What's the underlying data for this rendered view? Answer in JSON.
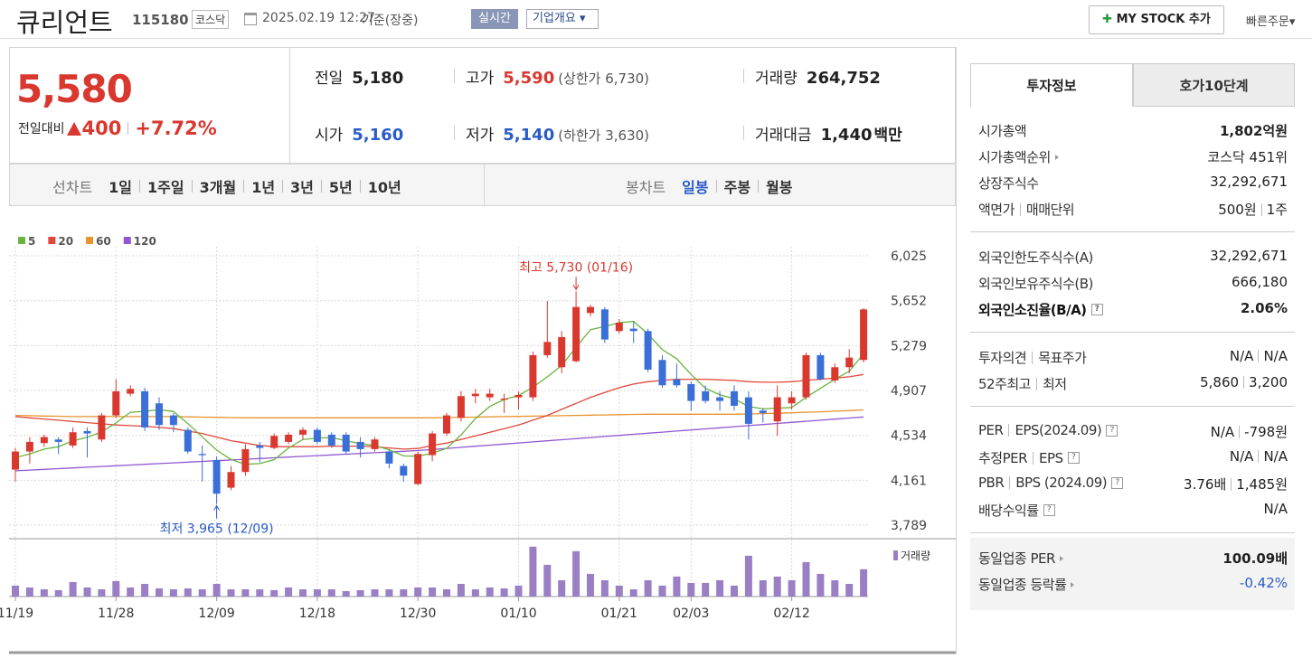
{
  "header": {
    "name": "큐리언트",
    "code": "115180",
    "market": "코스닥",
    "datetime": "2025.02.19 12:27",
    "basis": "기준(장중)",
    "realtime": "실시간",
    "company_info": "기업개요",
    "my_stock": "MY STOCK 추가",
    "quick_order": "빠른주문"
  },
  "quote": {
    "price": "5,580",
    "change_label": "전일대비",
    "change": "400",
    "change_pct": "+7.72%"
  },
  "stats": [
    {
      "label": "전일",
      "value": "5,180",
      "color": "#222222"
    },
    {
      "label": "고가",
      "value": "5,590",
      "note": "(상한가 6,730)",
      "color": "#d9382f"
    },
    {
      "label": "거래량",
      "value": "264,752",
      "color": "#222222"
    },
    {
      "label": "시가",
      "value": "5,160",
      "color": "#2a5bc8"
    },
    {
      "label": "저가",
      "value": "5,140",
      "note": "(하한가 3,630)",
      "color": "#2a5bc8"
    },
    {
      "label": "거래대금",
      "value": "1,440",
      "unit": "백만",
      "color": "#222222"
    }
  ],
  "periods": {
    "label": "선차트",
    "items": [
      "1일",
      "1주일",
      "3개월",
      "1년",
      "3년",
      "5년",
      "10년"
    ]
  },
  "candle_periods": {
    "label": "봉차트",
    "items": [
      "일봉",
      "주봉",
      "월봉"
    ],
    "active": 0
  },
  "chart_data": {
    "type": "candlestick",
    "categories": [
      "11/19",
      null,
      null,
      null,
      null,
      null,
      null,
      "11/28",
      null,
      null,
      null,
      null,
      null,
      null,
      "12/09",
      null,
      null,
      null,
      null,
      null,
      null,
      "12/18",
      null,
      null,
      null,
      null,
      null,
      null,
      "12/30",
      null,
      null,
      null,
      null,
      null,
      null,
      "01/10",
      null,
      null,
      null,
      null,
      null,
      null,
      "01/21",
      null,
      null,
      null,
      null,
      "02/03",
      null,
      null,
      null,
      null,
      null,
      null,
      "02/12",
      null,
      null,
      null,
      null,
      null
    ],
    "open": [
      4250,
      4400,
      4470,
      4500,
      4450,
      4570,
      4500,
      4700,
      4880,
      4900,
      4800,
      4700,
      4580,
      4380,
      4330,
      4100,
      4230,
      4450,
      4430,
      4480,
      4540,
      4580,
      4540,
      4540,
      4480,
      4420,
      4400,
      4280,
      4130,
      4370,
      4550,
      4680,
      4860,
      4850,
      4830,
      4850,
      4850,
      5200,
      5100,
      5150,
      5550,
      5580,
      5400,
      5420,
      5400,
      5160,
      5000,
      4960,
      4900,
      4850,
      4900,
      4850,
      4740,
      4650,
      4800,
      4850,
      5200,
      4990,
      5100,
      5160
    ],
    "high": [
      4430,
      4520,
      4540,
      4520,
      4600,
      4600,
      4720,
      5000,
      4950,
      4930,
      4850,
      4720,
      4600,
      4450,
      4360,
      4280,
      4460,
      4480,
      4550,
      4560,
      4600,
      4600,
      4560,
      4560,
      4520,
      4520,
      4420,
      4300,
      4400,
      4570,
      4720,
      4900,
      4920,
      4920,
      4880,
      4900,
      5230,
      5650,
      5400,
      5730,
      5620,
      5600,
      5500,
      5480,
      5420,
      5200,
      5130,
      4980,
      4950,
      4900,
      4950,
      4900,
      4760,
      4950,
      4900,
      5220,
      5220,
      5130,
      5250,
      5590
    ],
    "low": [
      4150,
      4300,
      4440,
      4380,
      4430,
      4350,
      4480,
      4680,
      4860,
      4570,
      4580,
      4560,
      4380,
      4150,
      3965,
      4080,
      4200,
      4310,
      4420,
      4460,
      4500,
      4460,
      4430,
      4380,
      4350,
      4400,
      4260,
      4150,
      4120,
      4320,
      4530,
      4650,
      4800,
      4820,
      4720,
      4750,
      4820,
      5180,
      5050,
      5140,
      5520,
      5300,
      5380,
      5300,
      5060,
      4930,
      4930,
      4740,
      4800,
      4740,
      4740,
      4500,
      4640,
      4530,
      4750,
      4830,
      4990,
      4970,
      5050,
      5140
    ],
    "close": [
      4400,
      4480,
      4520,
      4480,
      4560,
      4550,
      4700,
      4900,
      4920,
      4600,
      4620,
      4620,
      4400,
      4370,
      4050,
      4230,
      4420,
      4430,
      4530,
      4540,
      4580,
      4480,
      4450,
      4400,
      4420,
      4500,
      4300,
      4200,
      4380,
      4550,
      4700,
      4860,
      4880,
      4880,
      4840,
      4870,
      5200,
      5310,
      5350,
      5600,
      5600,
      5330,
      5470,
      5400,
      5080,
      4950,
      4950,
      4820,
      4820,
      4820,
      4780,
      4630,
      4720,
      4850,
      4850,
      5200,
      5000,
      5100,
      5180,
      5580
    ],
    "up_color": "#d9382f",
    "down_color": "#3a6fd8",
    "ylim": [
      3789,
      6025
    ],
    "yticks": [
      {
        "value": 6025,
        "label": "6,025"
      },
      {
        "value": 5652,
        "label": "5,652"
      },
      {
        "value": 5279,
        "label": "5,279"
      },
      {
        "value": 4907,
        "label": "4,907"
      },
      {
        "value": 4534,
        "label": "4,534"
      },
      {
        "value": 4161,
        "label": "4,161"
      },
      {
        "value": 3789,
        "label": "3,789"
      }
    ],
    "grid": true,
    "moving_averages": [
      {
        "name": "5",
        "color": "#6ab43e",
        "values": [
          4350,
          4380,
          4420,
          4440,
          4488,
          4518,
          4562,
          4638,
          4726,
          4734,
          4748,
          4732,
          4632,
          4522,
          4412,
          4334,
          4294,
          4300,
          4332,
          4430,
          4500,
          4512,
          4516,
          4490,
          4466,
          4450,
          4414,
          4364,
          4360,
          4386,
          4426,
          4538,
          4674,
          4774,
          4832,
          4866,
          4934,
          5020,
          5114,
          5266,
          5412,
          5438,
          5470,
          5480,
          5376,
          5246,
          5170,
          5040,
          4924,
          4872,
          4838,
          4774,
          4754,
          4760,
          4766,
          4850,
          4924,
          5000,
          5066,
          5212
        ]
      },
      {
        "name": "20",
        "color": "#e0483a",
        "values": [
          4690,
          4680,
          4670,
          4660,
          4650,
          4640,
          4630,
          4620,
          4615,
          4610,
          4600,
          4590,
          4570,
          4550,
          4520,
          4490,
          4470,
          4450,
          4440,
          4440,
          4440,
          4440,
          4445,
          4445,
          4445,
          4440,
          4430,
          4420,
          4425,
          4450,
          4470,
          4500,
          4530,
          4560,
          4590,
          4620,
          4660,
          4700,
          4750,
          4800,
          4850,
          4890,
          4930,
          4960,
          4980,
          4990,
          5000,
          5000,
          5000,
          4995,
          4990,
          4980,
          4975,
          4975,
          4980,
          4990,
          5000,
          5010,
          5020,
          5040
        ]
      },
      {
        "name": "60",
        "color": "#e8922e",
        "values": [
          4700,
          4698,
          4695,
          4693,
          4690,
          4690,
          4690,
          4690,
          4690,
          4690,
          4690,
          4690,
          4688,
          4686,
          4684,
          4682,
          4680,
          4680,
          4680,
          4680,
          4680,
          4680,
          4680,
          4680,
          4680,
          4680,
          4680,
          4680,
          4680,
          4680,
          4682,
          4684,
          4686,
          4688,
          4690,
          4692,
          4694,
          4696,
          4698,
          4700,
          4702,
          4704,
          4706,
          4708,
          4710,
          4710,
          4710,
          4710,
          4710,
          4710,
          4710,
          4712,
          4715,
          4718,
          4722,
          4726,
          4730,
          4735,
          4740,
          4746
        ]
      },
      {
        "name": "120",
        "color": "#9357d1",
        "values": [
          4240,
          4246,
          4252,
          4258,
          4264,
          4270,
          4276,
          4282,
          4288,
          4294,
          4300,
          4306,
          4312,
          4318,
          4324,
          4330,
          4336,
          4342,
          4348,
          4354,
          4360,
          4366,
          4372,
          4378,
          4384,
          4390,
          4396,
          4402,
          4408,
          4417,
          4426,
          4435,
          4444,
          4453,
          4462,
          4471,
          4480,
          4489,
          4498,
          4507,
          4516,
          4525,
          4534,
          4543,
          4552,
          4561,
          4570,
          4579,
          4588,
          4597,
          4606,
          4615,
          4624,
          4633,
          4642,
          4651,
          4660,
          4669,
          4678,
          4687
        ]
      }
    ],
    "volume": {
      "name": "거래량",
      "color": "#9a7fc5",
      "ylim": [
        0,
        500000
      ],
      "values": [
        106000,
        88000,
        70000,
        62000,
        141000,
        88000,
        70000,
        150000,
        88000,
        123000,
        79000,
        70000,
        79000,
        70000,
        123000,
        70000,
        70000,
        70000,
        62000,
        88000,
        70000,
        70000,
        70000,
        53000,
        62000,
        70000,
        70000,
        70000,
        88000,
        88000,
        70000,
        123000,
        70000,
        88000,
        79000,
        106000,
        484000,
        308000,
        158000,
        440000,
        220000,
        158000,
        106000,
        70000,
        158000,
        106000,
        194000,
        132000,
        132000,
        158000,
        106000,
        396000,
        158000,
        194000,
        158000,
        334000,
        220000,
        158000,
        123000,
        264752
      ]
    },
    "annotations": [
      {
        "text": "최고 5,730 (01/16)",
        "value": 5730,
        "color": "#d9382f"
      },
      {
        "text": "최저 3,965 (12/09)",
        "value": 3965,
        "color": "#2a5bc8"
      }
    ]
  },
  "side": {
    "tabs": [
      "투자정보",
      "호가10단계"
    ],
    "sections": [
      [
        {
          "label": [
            "시가총액"
          ],
          "value": [
            "1,802억원"
          ],
          "strong": true
        },
        {
          "label": [
            "시가총액순위"
          ],
          "arrow": true,
          "value": [
            "코스닥 451위"
          ]
        },
        {
          "label": [
            "상장주식수"
          ],
          "value": [
            "32,292,671"
          ]
        },
        {
          "label": [
            "액면가",
            "매매단위"
          ],
          "value": [
            "500원",
            "1주"
          ]
        }
      ],
      [
        {
          "label": [
            "외국인한도주식수(A)"
          ],
          "value": [
            "32,292,671"
          ]
        },
        {
          "label": [
            "외국인보유주식수(B)"
          ],
          "value": [
            "666,180"
          ]
        },
        {
          "label": [
            "외국인소진율(B/A)"
          ],
          "help": true,
          "value": [
            "2.06%"
          ],
          "strong": true
        }
      ],
      [
        {
          "label": [
            "투자의견",
            "목표주가"
          ],
          "value": [
            "N/A",
            "N/A"
          ]
        },
        {
          "label": [
            "52주최고",
            "최저"
          ],
          "value": [
            "5,860",
            "3,200"
          ]
        }
      ],
      [
        {
          "label": [
            "PER",
            "EPS(2024.09)"
          ],
          "help": true,
          "value": [
            "N/A",
            "-798원"
          ]
        },
        {
          "label": [
            "추정PER",
            "EPS"
          ],
          "help": true,
          "value": [
            "N/A",
            "N/A"
          ]
        },
        {
          "label": [
            "PBR",
            "BPS (2024.09)"
          ],
          "help": true,
          "value": [
            "3.76배",
            "1,485원"
          ]
        },
        {
          "label": [
            "배당수익률"
          ],
          "help": true,
          "value": [
            "N/A"
          ]
        }
      ],
      [
        {
          "label": [
            "동일업종 PER"
          ],
          "arrow": true,
          "value": [
            "100.09배"
          ],
          "strong": true
        },
        {
          "label": [
            "동일업종 등락률"
          ],
          "arrow": true,
          "value": [
            "-0.42%"
          ],
          "color": "#2a5bc8"
        }
      ]
    ]
  }
}
